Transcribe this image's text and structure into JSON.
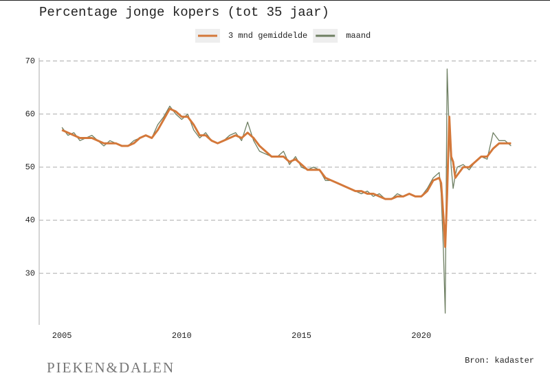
{
  "chart_data": {
    "type": "line",
    "title": "Percentage jonge kopers (tot 35 jaar)",
    "source": "Bron: kadaster",
    "logo": "PIEKEN&DALEN",
    "x": [
      2005.0,
      2005.25,
      2005.5,
      2005.75,
      2006.0,
      2006.25,
      2006.5,
      2006.75,
      2007.0,
      2007.25,
      2007.5,
      2007.75,
      2008.0,
      2008.25,
      2008.5,
      2008.75,
      2009.0,
      2009.25,
      2009.5,
      2009.75,
      2010.0,
      2010.25,
      2010.5,
      2010.75,
      2011.0,
      2011.25,
      2011.5,
      2011.75,
      2012.0,
      2012.25,
      2012.5,
      2012.75,
      2013.0,
      2013.25,
      2013.5,
      2013.75,
      2014.0,
      2014.25,
      2014.5,
      2014.75,
      2015.0,
      2015.25,
      2015.5,
      2015.75,
      2016.0,
      2016.25,
      2016.5,
      2016.75,
      2017.0,
      2017.25,
      2017.5,
      2017.75,
      2018.0,
      2018.25,
      2018.5,
      2018.75,
      2019.0,
      2019.25,
      2019.5,
      2019.75,
      2020.0,
      2020.25,
      2020.5,
      2020.75,
      2020.83,
      2020.92,
      2021.0,
      2021.08,
      2021.17,
      2021.25,
      2021.33,
      2021.42,
      2021.5,
      2021.75,
      2022.0,
      2022.25,
      2022.5,
      2022.75,
      2023.0,
      2023.25,
      2023.5,
      2023.75
    ],
    "series": [
      {
        "name": "3 mnd gemiddelde",
        "color": "#d4783a",
        "width": 3,
        "values": [
          57,
          56.5,
          56,
          55.5,
          55.5,
          55.5,
          55,
          54.5,
          54.5,
          54.5,
          54,
          54,
          54.5,
          55.5,
          56,
          55.5,
          57,
          59,
          61,
          60.5,
          59.5,
          59.5,
          58,
          56,
          56,
          55,
          54.5,
          55,
          55.5,
          56,
          55.5,
          56.5,
          55.5,
          54,
          53,
          52,
          52,
          52,
          51,
          51.5,
          50.5,
          49.5,
          49.5,
          49.5,
          48,
          47.5,
          47,
          46.5,
          46,
          45.5,
          45.5,
          45,
          45,
          44.5,
          44,
          44,
          44.5,
          44.5,
          45,
          44.5,
          44.5,
          45.5,
          47.5,
          48,
          47,
          41,
          35,
          45,
          59.5,
          52,
          51,
          48,
          48.5,
          50,
          50,
          51,
          52,
          52,
          53.5,
          54.5,
          54.5,
          54.5
        ]
      },
      {
        "name": "maand",
        "color": "#6e7f62",
        "width": 1.3,
        "values": [
          57.5,
          56,
          56.5,
          55,
          55.5,
          56,
          55,
          54,
          55,
          54.5,
          54,
          54,
          55,
          55.5,
          56,
          55.5,
          58,
          59.5,
          61.5,
          60,
          59,
          60,
          57,
          55.5,
          56.5,
          55,
          54.5,
          55,
          56,
          56.5,
          55,
          58.5,
          55,
          53,
          52.5,
          52,
          52,
          53,
          50.5,
          52,
          50,
          49.5,
          50,
          49.5,
          47.5,
          47.5,
          47,
          46.5,
          46,
          45.5,
          45,
          45.5,
          44.5,
          45,
          44,
          44,
          45,
          44.5,
          45,
          44.5,
          44.5,
          46,
          48,
          49,
          45,
          35,
          22.5,
          68.5,
          56,
          50,
          46,
          48.5,
          50,
          50.5,
          49.5,
          51,
          52,
          51.5,
          56.5,
          55,
          55,
          54
        ]
      }
    ],
    "xlim": [
      2004.05,
      2024.8
    ],
    "xticks": [
      2005,
      2010,
      2015,
      2020
    ],
    "ylim": [
      20.3,
      70.6
    ],
    "yticks": [
      30,
      40,
      50,
      60,
      70
    ],
    "grid": true
  }
}
